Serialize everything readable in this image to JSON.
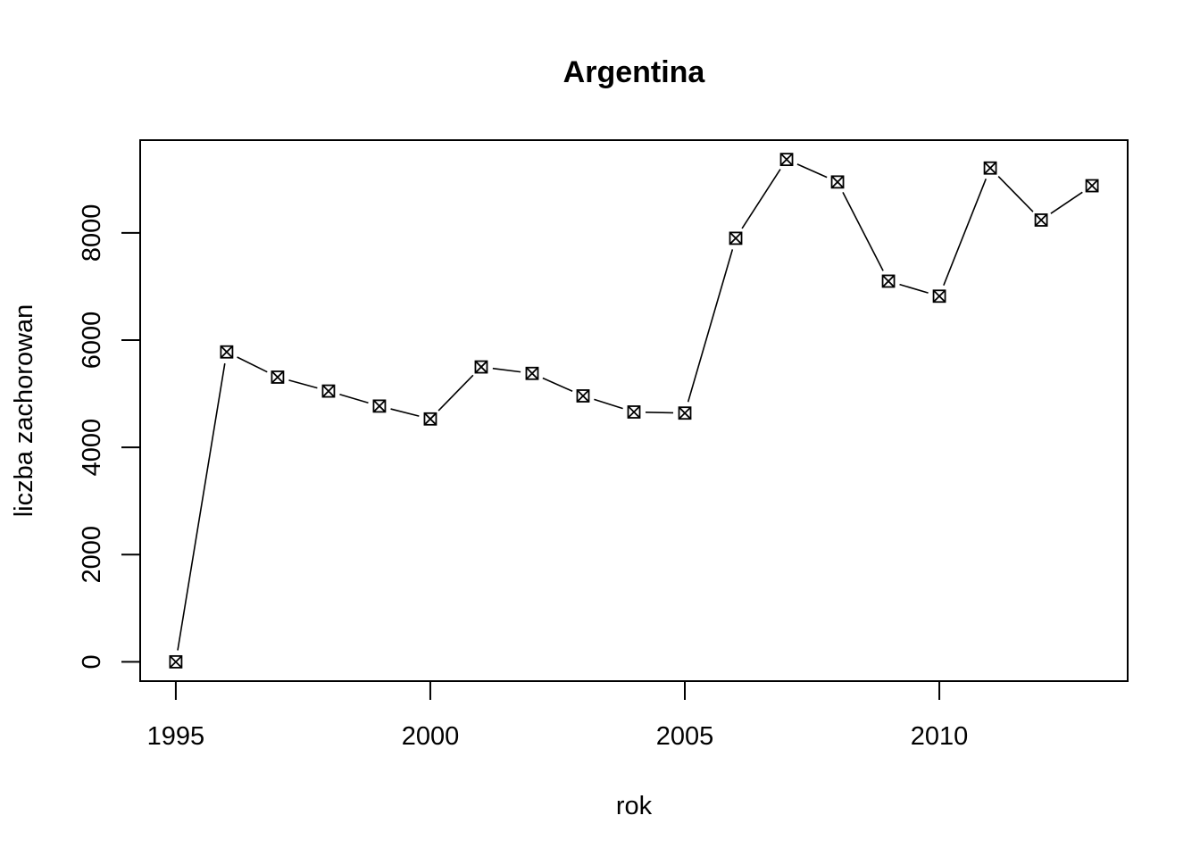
{
  "chart_data": {
    "type": "line",
    "title": "Argentina",
    "xlabel": "rok",
    "ylabel": "liczba zachorowan",
    "x": [
      1995,
      1996,
      1997,
      1998,
      1999,
      2000,
      2001,
      2002,
      2003,
      2004,
      2005,
      2006,
      2007,
      2008,
      2009,
      2010,
      2011,
      2012,
      2013
    ],
    "series": [
      {
        "values": [
          0,
          5780,
          5310,
          5050,
          4770,
          4530,
          5500,
          5380,
          4960,
          4660,
          4640,
          7900,
          9370,
          8950,
          7100,
          6820,
          9210,
          8240,
          8880
        ]
      }
    ],
    "xlim": [
      1994.3,
      2013.7
    ],
    "ylim": [
      -360,
      9730
    ],
    "xticks": [
      1995,
      2000,
      2005,
      2010
    ],
    "xtick_labels": [
      "1995",
      "2000",
      "2005",
      "2010"
    ],
    "yticks": [
      0,
      2000,
      4000,
      6000,
      8000
    ],
    "ytick_labels": [
      "0",
      "2000",
      "4000",
      "6000",
      "8000"
    ],
    "marker": "crossed-square",
    "grid": false,
    "legend": "none"
  }
}
